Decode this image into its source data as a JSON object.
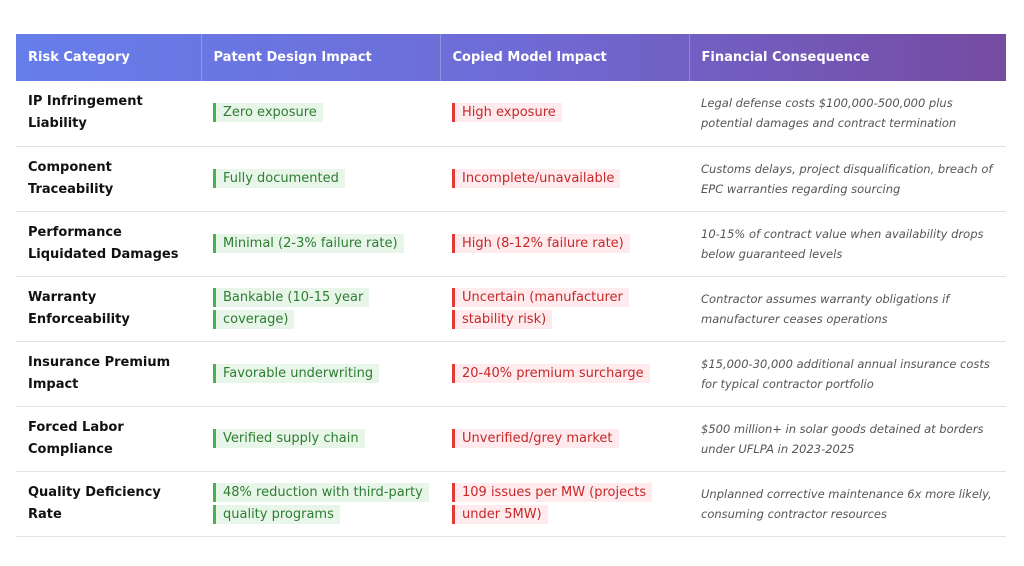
{
  "table": {
    "header": [
      "Risk Category",
      "Patent Design Impact",
      "Copied Model Impact",
      "Financial Consequence"
    ],
    "rows": [
      [
        "IP Infringement Liability",
        "Zero exposure",
        "High exposure",
        "Legal defense costs $100,000-500,000 plus potential damages and contract termination"
      ],
      [
        "Component Traceability",
        "Fully documented",
        "Incomplete/unavailable",
        "Customs delays, project disqualification, breach of EPC warranties regarding sourcing"
      ],
      [
        "Performance Liquidated Damages",
        "Minimal (2-3% failure rate)",
        "High (8-12% failure rate)",
        "10-15% of contract value when availability drops below guaranteed levels"
      ],
      [
        "Warranty Enforceability",
        "Bankable (10-15 year coverage)",
        "Uncertain (manufacturer stability risk)",
        "Contractor assumes warranty obligations if manufacturer ceases operations"
      ],
      [
        "Insurance Premium Impact",
        "Favorable underwriting",
        "20-40% premium surcharge",
        "$15,000-30,000 additional annual insurance costs for typical contractor portfolio"
      ],
      [
        "Forced Labor Compliance",
        "Verified supply chain",
        "Unverified/grey market",
        "$500 million+ in solar goods detained at borders under UFLPA in 2023-2025"
      ],
      [
        "Quality Deficiency Rate",
        "48% reduction with third-party quality programs",
        "109 issues per MW (projects under 5MW)",
        "Unplanned corrective maintenance 6x more likely, consuming contractor resources"
      ]
    ]
  }
}
